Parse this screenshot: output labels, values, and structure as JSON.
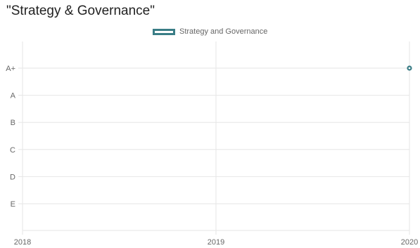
{
  "title": "\"Strategy & Governance\"",
  "chart_data": {
    "type": "line",
    "title": "\"Strategy & Governance\"",
    "xlabel": "",
    "ylabel": "",
    "x_ticks": [
      "2018",
      "2019",
      "2020"
    ],
    "y_categories": [
      "A+",
      "A",
      "B",
      "C",
      "D",
      "E"
    ],
    "xlim": [
      2018,
      2020
    ],
    "grid": true,
    "legend_position": "top-center",
    "series": [
      {
        "name": "Strategy and Governance",
        "color": "#3a7d86",
        "points": [
          {
            "x": 2020,
            "y": "A+"
          }
        ]
      }
    ]
  }
}
